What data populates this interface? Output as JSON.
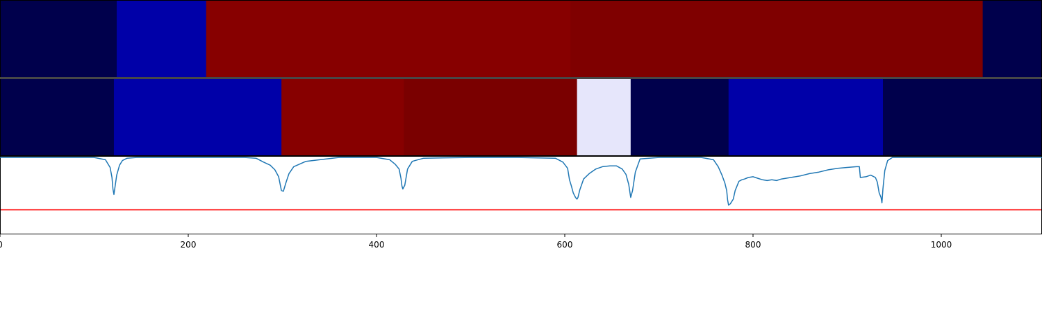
{
  "chart_data": {
    "type": "heatmap",
    "x_ticks": [
      0,
      200,
      400,
      600,
      800,
      1000
    ],
    "x_tick_labels": [
      "0",
      "200",
      "400",
      "600",
      "800",
      "1000"
    ],
    "xlim": [
      0,
      1107
    ],
    "segment_rows": [
      {
        "segments": [
          {
            "start": 0,
            "end": 124,
            "color": "#00004c"
          },
          {
            "start": 124,
            "end": 219,
            "color": "#0000a8"
          },
          {
            "start": 219,
            "end": 606,
            "color": "#870000"
          },
          {
            "start": 606,
            "end": 1044,
            "color": "#7f0000"
          },
          {
            "start": 1044,
            "end": 1107,
            "color": "#00004c"
          }
        ]
      },
      {
        "segments": [
          {
            "start": 0,
            "end": 121,
            "color": "#00004c"
          },
          {
            "start": 121,
            "end": 299,
            "color": "#0000a8"
          },
          {
            "start": 299,
            "end": 429,
            "color": "#870000"
          },
          {
            "start": 429,
            "end": 613,
            "color": "#7a0000"
          },
          {
            "start": 613,
            "end": 670,
            "color": "#e6e6fb"
          },
          {
            "start": 670,
            "end": 774,
            "color": "#00004c"
          },
          {
            "start": 774,
            "end": 938,
            "color": "#0000a8"
          },
          {
            "start": 938,
            "end": 1107,
            "color": "#00004c"
          }
        ]
      }
    ],
    "line_panel": {
      "ylim": [
        0,
        1.0
      ],
      "threshold": 0.31,
      "threshold_color": "#ff0000",
      "line_color": "#1f77b4",
      "x": [
        0,
        100,
        112,
        117,
        119,
        120,
        121,
        122,
        124,
        127,
        130,
        135,
        145,
        200,
        260,
        272,
        280,
        287,
        292,
        296,
        299,
        301,
        304,
        307,
        312,
        325,
        360,
        400,
        414,
        420,
        424,
        426,
        427,
        428,
        430,
        433,
        438,
        450,
        500,
        550,
        590,
        598,
        603,
        605,
        607,
        609,
        611,
        612,
        613,
        614,
        616,
        620,
        626,
        633,
        640,
        648,
        655,
        661,
        665,
        668,
        670,
        672,
        675,
        680,
        700,
        745,
        758,
        763,
        767,
        770,
        772,
        773,
        774,
        776,
        779,
        781,
        783,
        785,
        788,
        791,
        795,
        800,
        805,
        810,
        815,
        820,
        825,
        830,
        840,
        850,
        860,
        870,
        880,
        890,
        900,
        910,
        913,
        914,
        920,
        925,
        930,
        932,
        934,
        936,
        937,
        938,
        940,
        943,
        948,
        960,
        1000,
        1107
      ],
      "y": [
        0.99,
        0.99,
        0.96,
        0.86,
        0.73,
        0.58,
        0.51,
        0.59,
        0.76,
        0.89,
        0.95,
        0.98,
        0.99,
        0.99,
        0.99,
        0.98,
        0.93,
        0.89,
        0.83,
        0.74,
        0.56,
        0.55,
        0.67,
        0.78,
        0.87,
        0.94,
        0.99,
        0.99,
        0.96,
        0.9,
        0.84,
        0.72,
        0.62,
        0.58,
        0.63,
        0.84,
        0.94,
        0.98,
        0.99,
        0.99,
        0.98,
        0.93,
        0.85,
        0.7,
        0.62,
        0.53,
        0.48,
        0.46,
        0.45,
        0.47,
        0.57,
        0.71,
        0.78,
        0.84,
        0.87,
        0.88,
        0.88,
        0.84,
        0.77,
        0.64,
        0.47,
        0.56,
        0.8,
        0.97,
        0.99,
        0.99,
        0.96,
        0.87,
        0.76,
        0.66,
        0.56,
        0.44,
        0.37,
        0.39,
        0.45,
        0.56,
        0.62,
        0.68,
        0.7,
        0.71,
        0.73,
        0.74,
        0.72,
        0.7,
        0.69,
        0.7,
        0.69,
        0.71,
        0.73,
        0.75,
        0.78,
        0.8,
        0.83,
        0.85,
        0.86,
        0.87,
        0.87,
        0.73,
        0.74,
        0.76,
        0.73,
        0.67,
        0.53,
        0.47,
        0.4,
        0.58,
        0.82,
        0.95,
        0.99,
        0.99,
        0.99,
        0.99
      ]
    }
  }
}
